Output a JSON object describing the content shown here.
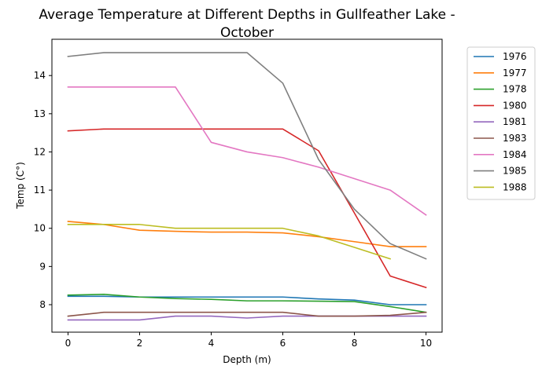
{
  "chart_data": {
    "type": "line",
    "title": "Average Temperature at Different Depths in Gullfeather Lake - October",
    "title_lines": [
      "Average Temperature at Different Depths in Gullfeather Lake -",
      "October"
    ],
    "xlabel": "Depth (m)",
    "ylabel": "Temp (C°)",
    "xlim": [
      -0.45,
      10.45
    ],
    "ylim": [
      7.28,
      14.95
    ],
    "xticks": [
      0,
      2,
      4,
      6,
      8,
      10
    ],
    "yticks": [
      8,
      9,
      10,
      11,
      12,
      13,
      14
    ],
    "grid": false,
    "legend_position": "outside-right",
    "series": [
      {
        "name": "1976",
        "color": "#1f77b4",
        "x": [
          0,
          1,
          2,
          3,
          4,
          5,
          6,
          7,
          8,
          9,
          10
        ],
        "y": [
          8.22,
          8.22,
          8.2,
          8.2,
          8.2,
          8.2,
          8.2,
          8.15,
          8.12,
          8.0,
          8.0
        ]
      },
      {
        "name": "1977",
        "color": "#ff7f0e",
        "x": [
          0,
          1,
          2,
          3,
          4,
          5,
          6,
          7,
          8,
          9,
          10
        ],
        "y": [
          10.18,
          10.1,
          9.95,
          9.92,
          9.9,
          9.9,
          9.88,
          9.78,
          9.65,
          9.52,
          9.52
        ]
      },
      {
        "name": "1978",
        "color": "#2ca02c",
        "x": [
          0,
          1,
          2,
          3,
          4,
          5,
          6,
          7,
          8,
          9,
          10
        ],
        "y": [
          8.25,
          8.27,
          8.2,
          8.16,
          8.14,
          8.1,
          8.1,
          8.09,
          8.08,
          7.95,
          7.8
        ]
      },
      {
        "name": "1980",
        "color": "#d62728",
        "x": [
          0,
          1,
          2,
          3,
          4,
          5,
          6,
          7,
          8,
          9,
          10
        ],
        "y": [
          12.55,
          12.6,
          12.6,
          12.6,
          12.6,
          12.6,
          12.6,
          12.03,
          10.4,
          8.75,
          8.45
        ]
      },
      {
        "name": "1981",
        "color": "#9467bd",
        "x": [
          0,
          1,
          2,
          3,
          4,
          5,
          6,
          7,
          8,
          9,
          10
        ],
        "y": [
          7.6,
          7.6,
          7.6,
          7.7,
          7.7,
          7.65,
          7.7,
          7.7,
          7.7,
          7.7,
          7.7
        ]
      },
      {
        "name": "1983",
        "color": "#8c564b",
        "x": [
          0,
          1,
          2,
          3,
          4,
          5,
          6,
          7,
          8,
          9,
          10
        ],
        "y": [
          7.7,
          7.8,
          7.8,
          7.8,
          7.8,
          7.8,
          7.8,
          7.7,
          7.7,
          7.72,
          7.8
        ]
      },
      {
        "name": "1984",
        "color": "#e377c2",
        "x": [
          0,
          1,
          2,
          3,
          4,
          5,
          6,
          7,
          8,
          9,
          10
        ],
        "y": [
          13.7,
          13.7,
          13.7,
          13.7,
          12.25,
          12.0,
          11.85,
          11.6,
          11.3,
          11.0,
          10.35
        ]
      },
      {
        "name": "1985",
        "color": "#7f7f7f",
        "x": [
          0,
          1,
          2,
          3,
          4,
          5,
          6,
          7,
          8,
          9,
          10
        ],
        "y": [
          14.5,
          14.6,
          14.6,
          14.6,
          14.6,
          14.6,
          13.8,
          11.8,
          10.5,
          9.6,
          9.2
        ]
      },
      {
        "name": "1988",
        "color": "#bcbd22",
        "x": [
          0,
          1,
          2,
          3,
          4,
          5,
          6,
          7,
          8,
          9
        ],
        "y": [
          10.1,
          10.1,
          10.1,
          10.0,
          10.0,
          10.0,
          10.0,
          9.8,
          9.5,
          9.2
        ]
      }
    ]
  }
}
